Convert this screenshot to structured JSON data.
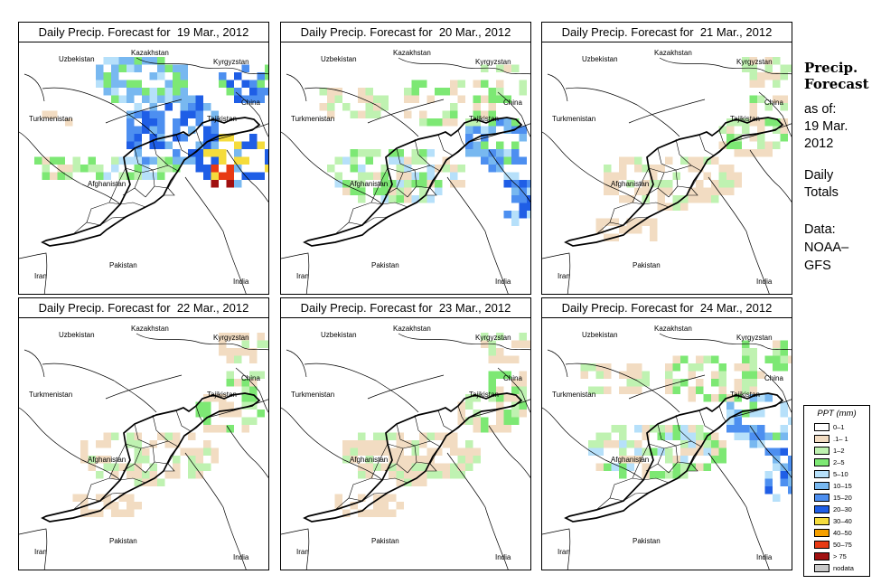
{
  "panels": [
    {
      "title": "Daily Precip. Forecast for  19 Mar., 2012",
      "intensity": "heavy"
    },
    {
      "title": "Daily Precip. Forecast for  20 Mar., 2012",
      "intensity": "medium"
    },
    {
      "title": "Daily Precip. Forecast for  21 Mar., 2012",
      "intensity": "light"
    },
    {
      "title": "Daily Precip. Forecast for  22 Mar., 2012",
      "intensity": "light"
    },
    {
      "title": "Daily Precip. Forecast for  23 Mar., 2012",
      "intensity": "light"
    },
    {
      "title": "Daily Precip. Forecast for  24 Mar., 2012",
      "intensity": "medium"
    }
  ],
  "map_labels": {
    "uzbekistan": "Uzbekistan",
    "kazakhstan": "Kazakhstan",
    "kyrgyzstan": "Kyrgyzstan",
    "china": "China",
    "turkmenistan": "Turkmenistan",
    "tajikistan": "Tajikistan",
    "afghanistan": "Afghanistan",
    "pakistan": "Pakistan",
    "iran": "Iran",
    "india": "India"
  },
  "sidebar": {
    "title_line1": "Precip.",
    "title_line2": "Forecast",
    "asof": "as of:",
    "date_line1": "19 Mar.",
    "date_line2": "2012",
    "daily": "Daily",
    "totals": "Totals",
    "data_label": "Data:",
    "source_line1": "NOAA–",
    "source_line2": "GFS"
  },
  "legend": {
    "title": "PPT (mm)",
    "items": [
      {
        "label": "0–1",
        "color": "#ffffff"
      },
      {
        "label": ".1– 1",
        "color": "#f2dcc2"
      },
      {
        "label": "1–2",
        "color": "#bff2b1"
      },
      {
        "label": "2–5",
        "color": "#7de874"
      },
      {
        "label": "5–10",
        "color": "#b6e0fa"
      },
      {
        "label": "10–15",
        "color": "#78b8f0"
      },
      {
        "label": "15–20",
        "color": "#4d8ff0"
      },
      {
        "label": "20–30",
        "color": "#1f5ee6"
      },
      {
        "label": "30–40",
        "color": "#f5dc3c"
      },
      {
        "label": "40–50",
        "color": "#f5a000"
      },
      {
        "label": "50–75",
        "color": "#e83a14"
      },
      {
        "label": "> 75",
        "color": "#a01010"
      },
      {
        "label": "nodata",
        "color": "#c8c8c8"
      }
    ]
  }
}
